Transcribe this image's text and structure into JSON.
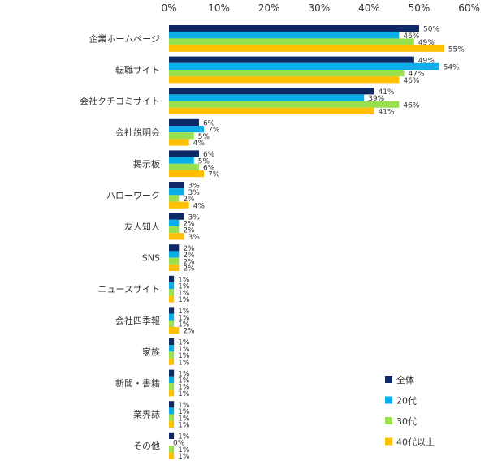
{
  "chart_data": {
    "type": "bar",
    "orientation": "horizontal",
    "title": "",
    "xlabel": "",
    "ylabel": "",
    "xlim": [
      0,
      60
    ],
    "ticks": [
      0,
      10,
      20,
      30,
      40,
      50,
      60
    ],
    "tick_labels": [
      "0%",
      "10%",
      "20%",
      "30%",
      "40%",
      "50%",
      "60%"
    ],
    "value_suffix": "%",
    "grid": false,
    "legend_position": "bottom-right",
    "categories": [
      "企業ホームページ",
      "転職サイト",
      "会社クチコミサイト",
      "会社説明会",
      "掲示板",
      "ハローワーク",
      "友人知人",
      "SNS",
      "ニュースサイト",
      "会社四季報",
      "家族",
      "新聞・書籍",
      "業界誌",
      "その他"
    ],
    "series": [
      {
        "name": "全体",
        "color": "#0d2a66",
        "values": [
          50,
          49,
          41,
          6,
          6,
          3,
          3,
          2,
          1,
          1,
          1,
          1,
          1,
          1
        ]
      },
      {
        "name": "20代",
        "color": "#0aaee8",
        "values": [
          46,
          54,
          39,
          7,
          5,
          3,
          2,
          2,
          1,
          1,
          1,
          1,
          1,
          0
        ]
      },
      {
        "name": "30代",
        "color": "#99e04f",
        "values": [
          49,
          47,
          46,
          5,
          6,
          2,
          2,
          2,
          1,
          1,
          1,
          1,
          1,
          1
        ]
      },
      {
        "name": "40代以上",
        "color": "#ffc000",
        "values": [
          55,
          46,
          41,
          4,
          7,
          4,
          3,
          2,
          1,
          2,
          1,
          1,
          1,
          1
        ]
      }
    ]
  }
}
